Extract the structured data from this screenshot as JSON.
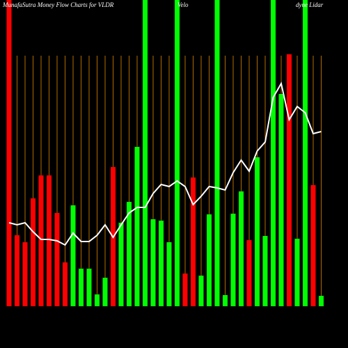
{
  "chart_data": {
    "type": "bar",
    "title": [
      "MunafaSutra  Money Flow  Charts for VLDR",
      "Velo",
      "dyne  Lidar"
    ],
    "values": [
      440,
      102,
      92,
      155,
      188,
      188,
      134,
      63,
      145,
      54,
      54,
      17,
      41,
      200,
      120,
      150,
      229,
      440,
      125,
      123,
      92,
      440,
      47,
      185,
      44,
      132,
      440,
      16,
      133,
      165,
      95,
      214,
      101,
      440,
      305,
      362,
      97,
      440,
      174,
      15
    ],
    "colors": [
      "#ff0000",
      "#ff0000",
      "#ff0000",
      "#ff0000",
      "#ff0000",
      "#ff0000",
      "#ff0000",
      "#ff0000",
      "#00ff00",
      "#00ff00",
      "#00ff00",
      "#00ff00",
      "#00ff00",
      "#ff0000",
      "#00ff00",
      "#00ff00",
      "#00ff00",
      "#00ff00",
      "#00ff00",
      "#00ff00",
      "#00ff00",
      "#00ff00",
      "#ff0000",
      "#ff0000",
      "#00ff00",
      "#00ff00",
      "#00ff00",
      "#00ff00",
      "#00ff00",
      "#00ff00",
      "#ff0000",
      "#00ff00",
      "#00ff00",
      "#00ff00",
      "#00ff00",
      "#ff0000",
      "#00ff00",
      "#00ff00",
      "#ff0000",
      "#00ff00"
    ],
    "line": {
      "color": "#ffffff",
      "values": [
        120,
        117,
        120,
        107,
        96,
        96,
        94,
        88,
        105,
        93,
        93,
        102,
        117,
        99,
        117,
        134,
        142,
        142,
        162,
        175,
        172,
        180,
        172,
        146,
        158,
        172,
        170,
        167,
        192,
        210,
        194,
        223,
        236,
        300,
        320,
        268,
        287,
        278,
        248,
        251
      ]
    },
    "grid_color": "#b36b00",
    "ylim": [
      0,
      440
    ]
  }
}
